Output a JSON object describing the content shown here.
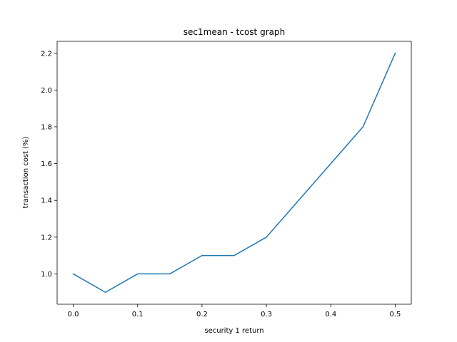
{
  "chart_data": {
    "type": "line",
    "title": "sec1mean - tcost graph",
    "xlabel": "security 1 return",
    "ylabel": "transaction cost (%)",
    "xlim": [
      -0.025,
      0.525
    ],
    "ylim": [
      0.835,
      2.265
    ],
    "x_ticks": [
      0.0,
      0.1,
      0.2,
      0.3,
      0.4,
      0.5
    ],
    "x_tick_labels": [
      "0.0",
      "0.1",
      "0.2",
      "0.3",
      "0.4",
      "0.5"
    ],
    "y_ticks": [
      1.0,
      1.2,
      1.4,
      1.6,
      1.8,
      2.0,
      2.2
    ],
    "y_tick_labels": [
      "1.0",
      "1.2",
      "1.4",
      "1.6",
      "1.8",
      "2.0",
      "2.2"
    ],
    "grid": false,
    "series": [
      {
        "color": "#1f77b4",
        "x": [
          0.0,
          0.05,
          0.1,
          0.15,
          0.2,
          0.25,
          0.3,
          0.35,
          0.4,
          0.45,
          0.5
        ],
        "y": [
          1.0,
          0.9,
          1.0,
          1.0,
          1.1,
          1.1,
          1.2,
          1.4,
          1.6,
          1.8,
          2.2
        ]
      }
    ]
  }
}
